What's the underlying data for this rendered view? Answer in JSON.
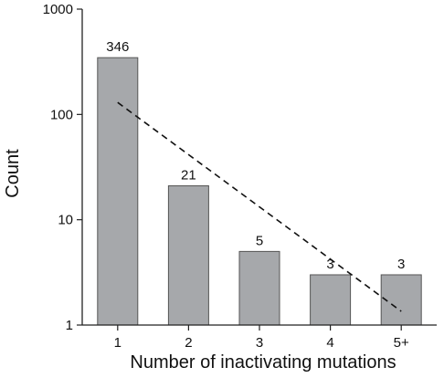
{
  "chart_data": {
    "type": "bar",
    "categories": [
      "1",
      "2",
      "3",
      "4",
      "5+"
    ],
    "values": [
      346,
      21,
      5,
      3,
      3
    ],
    "data_labels": [
      "346",
      "21",
      "5",
      "3",
      "3"
    ],
    "xlabel": "Number of inactivating mutations",
    "ylabel": "Count",
    "yscale": "log",
    "ylim": [
      1,
      1000
    ],
    "yticks": [
      1,
      10,
      100,
      1000
    ],
    "ytick_labels": [
      "1",
      "10",
      "100",
      "1000"
    ],
    "grid": false,
    "trendline": {
      "style": "dashed",
      "x": [
        "1",
        "5+"
      ],
      "y": [
        130,
        1.35
      ]
    },
    "colors": {
      "bar_fill": "#a6a8ab",
      "bar_stroke": "#555555",
      "axis": "#222222",
      "trendline": "#111111"
    }
  }
}
